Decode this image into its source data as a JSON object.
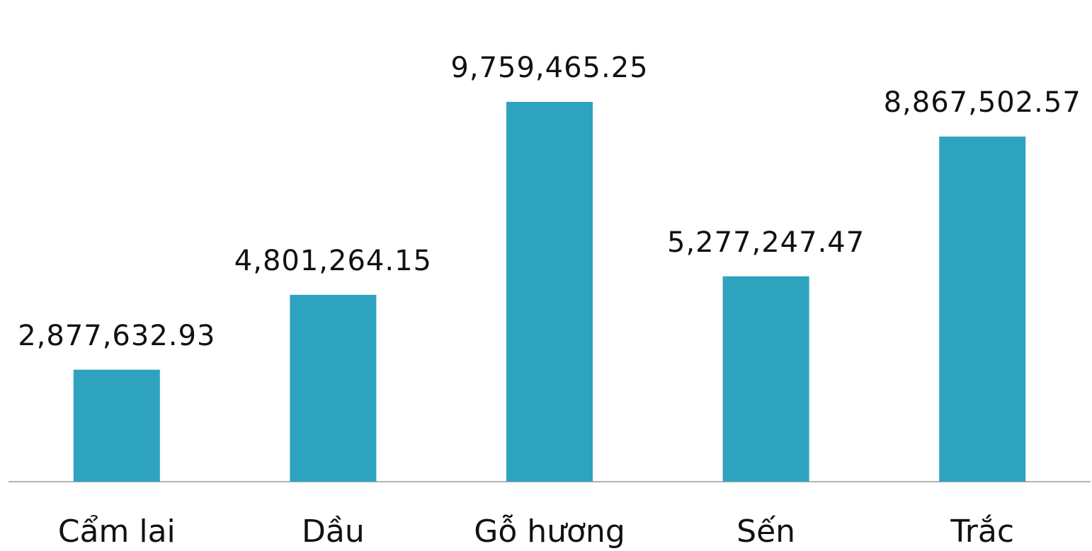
{
  "chart_data": {
    "type": "bar",
    "categories": [
      "Cẩm lai",
      "Dầu",
      "Gỗ hương",
      "Sến",
      "Trắc"
    ],
    "values": [
      2877632.93,
      4801264.15,
      9759465.25,
      5277247.47,
      8867502.57
    ],
    "value_labels": [
      "2,877,632.93",
      "4,801,264.15",
      "9,759,465.25",
      "5,277,247.47",
      "8,867,502.57"
    ],
    "color": "#2ea3bf"
  }
}
